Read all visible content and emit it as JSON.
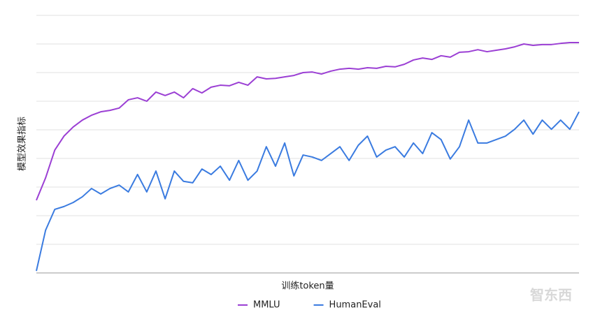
{
  "chart_data": {
    "type": "line",
    "x_label": "训练token量",
    "y_label": "模型效果指标",
    "watermark": "智东西",
    "x": [
      0,
      1,
      2,
      3,
      4,
      5,
      6,
      7,
      8,
      9,
      10,
      11,
      12,
      13,
      14,
      15,
      16,
      17,
      18,
      19,
      20,
      21,
      22,
      23,
      24,
      25,
      26,
      27,
      28,
      29,
      30,
      31,
      32,
      33,
      34,
      35,
      36,
      37,
      38,
      39,
      40,
      41,
      42,
      43,
      44,
      45,
      46,
      47,
      48,
      49,
      50,
      51,
      52,
      53,
      54,
      55,
      56,
      57,
      58,
      59
    ],
    "xlim": [
      0,
      59
    ],
    "ylim": [
      0,
      9
    ],
    "yticks": [
      0,
      1,
      2,
      3,
      4,
      5,
      6,
      7,
      8,
      9
    ],
    "grid": true,
    "legend": "bottom",
    "series": [
      {
        "name": "MMLU",
        "color": "#9b3fd4",
        "values": [
          2.54,
          3.32,
          4.29,
          4.78,
          5.1,
          5.34,
          5.51,
          5.63,
          5.68,
          5.76,
          6.05,
          6.12,
          6.0,
          6.32,
          6.2,
          6.32,
          6.12,
          6.44,
          6.29,
          6.49,
          6.56,
          6.54,
          6.66,
          6.56,
          6.85,
          6.78,
          6.8,
          6.85,
          6.9,
          7.0,
          7.02,
          6.95,
          7.05,
          7.12,
          7.15,
          7.12,
          7.17,
          7.15,
          7.22,
          7.2,
          7.29,
          7.44,
          7.51,
          7.46,
          7.59,
          7.54,
          7.71,
          7.73,
          7.8,
          7.73,
          7.78,
          7.83,
          7.9,
          8.0,
          7.95,
          7.98,
          7.98,
          8.02,
          8.05,
          8.05
        ]
      },
      {
        "name": "HumanEval",
        "color": "#3a7be0",
        "values": [
          0.07,
          1.49,
          2.22,
          2.32,
          2.46,
          2.66,
          2.95,
          2.76,
          2.95,
          3.07,
          2.83,
          3.44,
          2.83,
          3.56,
          2.59,
          3.56,
          3.2,
          3.15,
          3.63,
          3.44,
          3.73,
          3.24,
          3.93,
          3.24,
          3.56,
          4.41,
          3.73,
          4.54,
          3.39,
          4.12,
          4.05,
          3.93,
          4.17,
          4.41,
          3.93,
          4.46,
          4.78,
          4.05,
          4.29,
          4.41,
          4.05,
          4.54,
          4.17,
          4.9,
          4.66,
          3.98,
          4.41,
          5.34,
          4.54,
          4.54,
          4.66,
          4.78,
          5.02,
          5.34,
          4.85,
          5.34,
          5.02,
          5.34,
          5.02,
          5.63
        ]
      }
    ]
  }
}
